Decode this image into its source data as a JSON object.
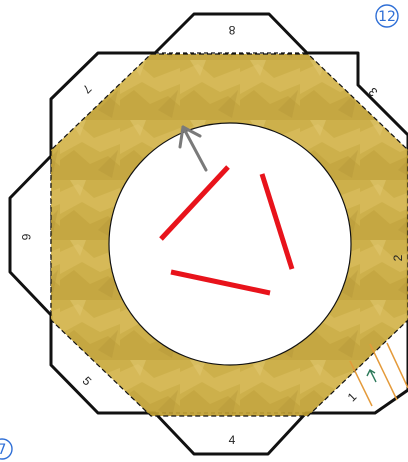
{
  "puzzle_number": "12",
  "corner_mark": "7",
  "edge_labels": {
    "top": "8",
    "upper_right": "3",
    "right": "2",
    "lower_right": "1",
    "bottom": "4",
    "lower_left": "5",
    "left": "6",
    "upper_left": "7"
  },
  "colors": {
    "outline": "#111111",
    "gold_fill": "#c9a93c",
    "wall_red": "#e8131b",
    "arrow_gray": "#7a7a7a",
    "badge_blue": "#2f6fd6",
    "tab_orange": "#e49a3a",
    "tab_arrow_green": "#2d7a5a"
  },
  "icons": {
    "direction_arrow": "up-left-arrow-icon",
    "tab_arrow": "up-arrow-icon",
    "badge": "circled-number-icon"
  }
}
